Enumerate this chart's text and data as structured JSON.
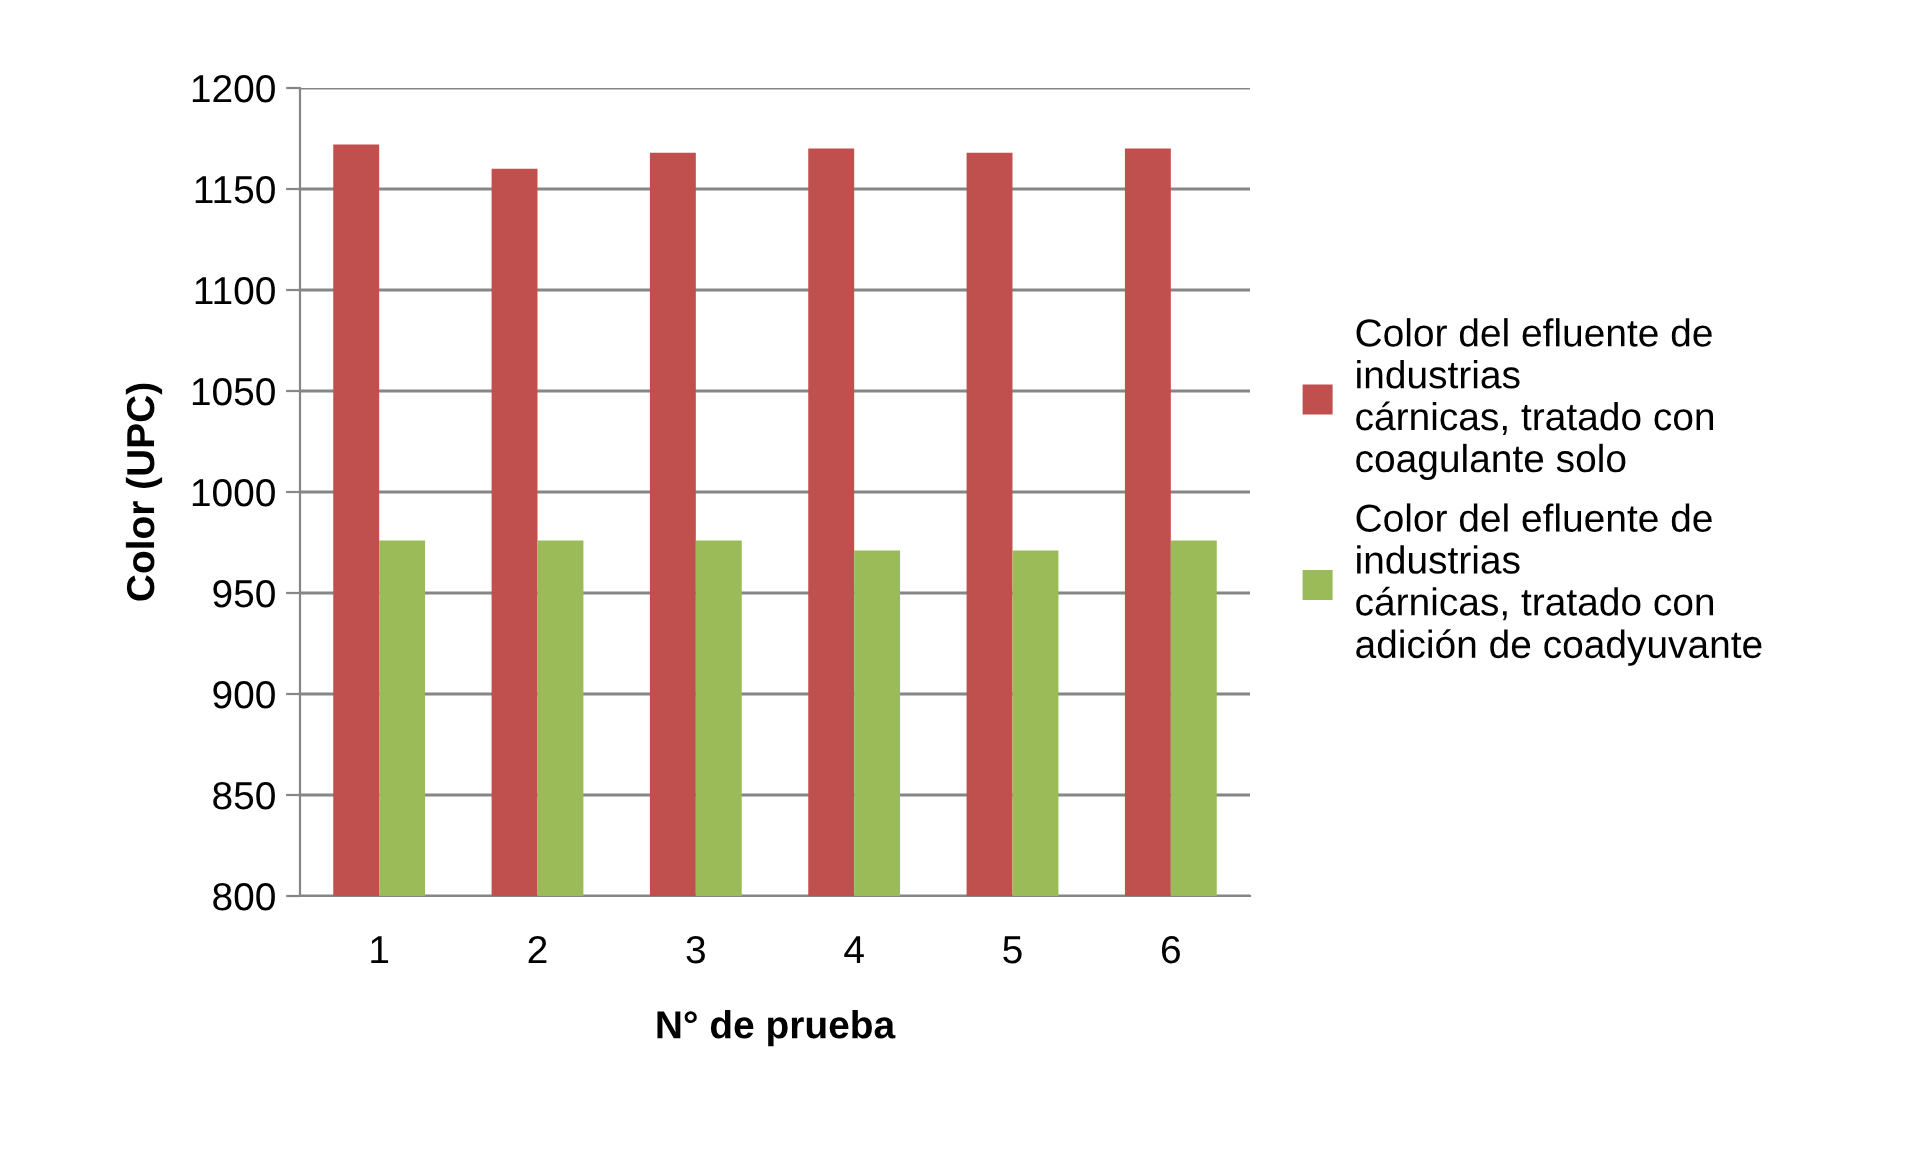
{
  "chart_data": {
    "type": "bar",
    "xlabel": "N° de prueba",
    "ylabel": "Color (UPC)",
    "categories": [
      "1",
      "2",
      "3",
      "4",
      "5",
      "6"
    ],
    "series": [
      {
        "name": "Color del efluente de\nindustrias\ncárnicas, tratado con\ncoagulante solo",
        "color": "#c0504d",
        "values": [
          1172,
          1160,
          1168,
          1170,
          1168,
          1170
        ]
      },
      {
        "name": "Color del efluente de\nindustrias\ncárnicas, tratado con\nadición de coadyuvante",
        "color": "#9bbb59",
        "values": [
          976,
          976,
          976,
          971,
          971,
          976
        ]
      }
    ],
    "ylim": [
      800,
      1200
    ],
    "yticks": [
      800,
      850,
      900,
      950,
      1000,
      1050,
      1100,
      1150,
      1200
    ],
    "grid": "y",
    "legend": "right"
  }
}
